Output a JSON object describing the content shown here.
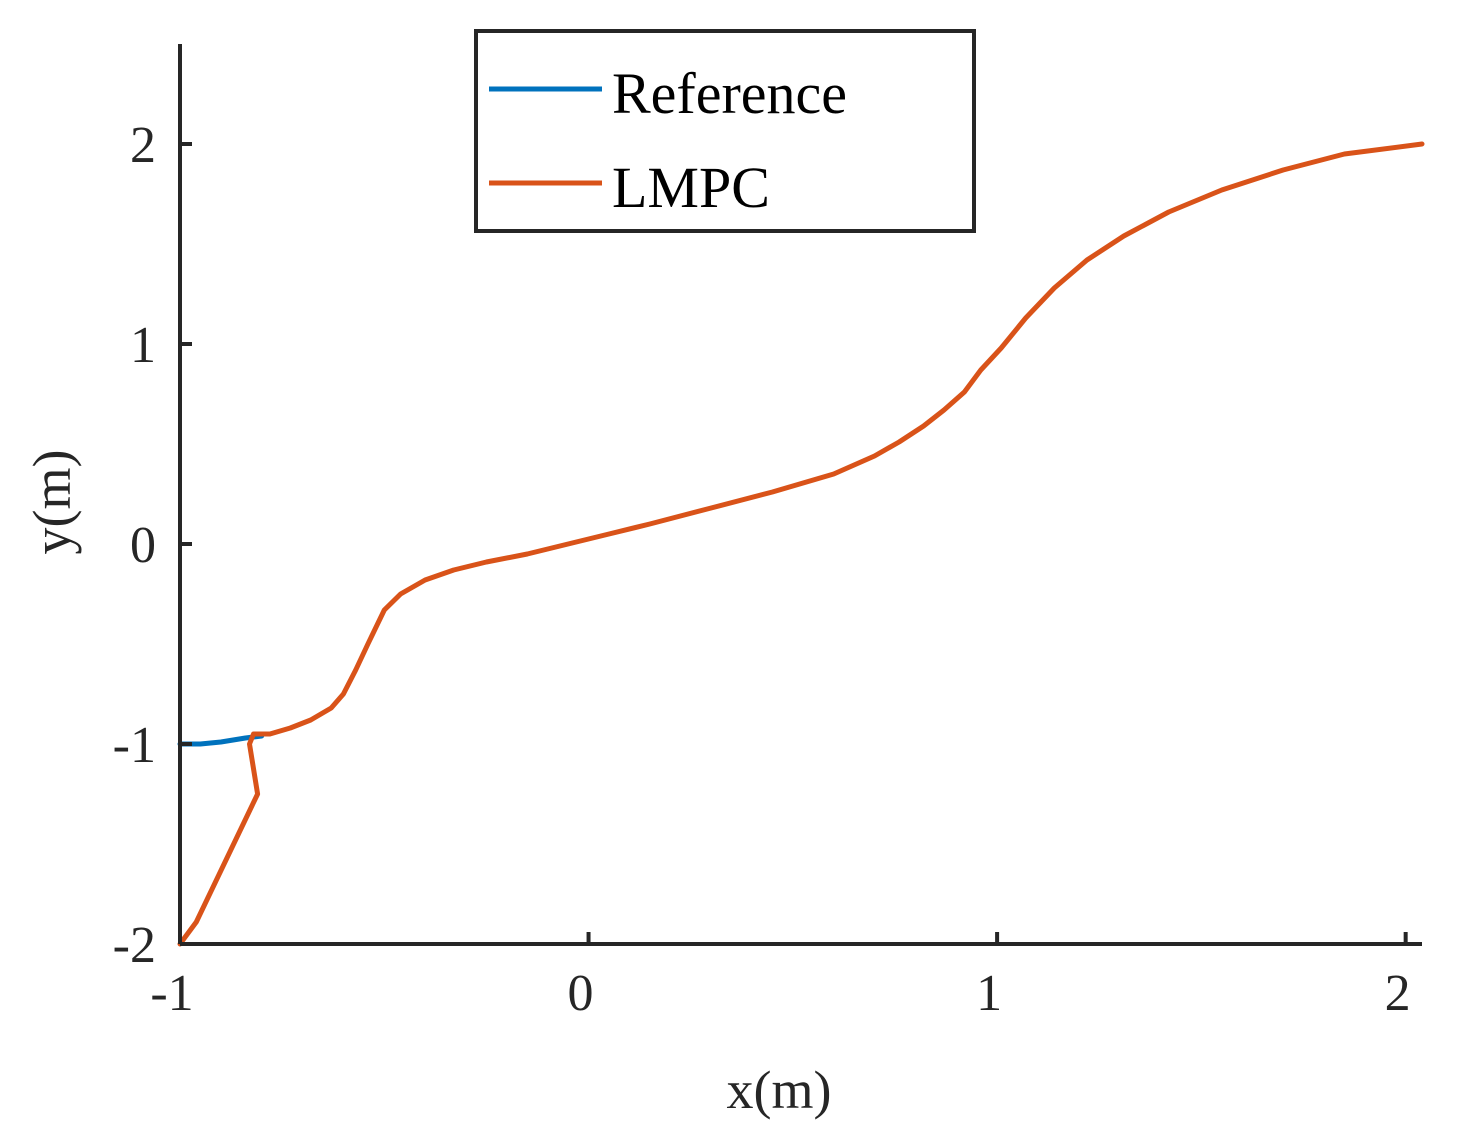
{
  "chart_data": {
    "type": "line",
    "xlabel": "x(m)",
    "ylabel": "y(m)",
    "xlim": [
      -1,
      2.04
    ],
    "ylim": [
      -2,
      2.5
    ],
    "xticks": [
      -1,
      0,
      1,
      2
    ],
    "yticks": [
      -2,
      -1,
      0,
      1,
      2
    ],
    "xtick_labels": [
      "-1",
      "0",
      "1",
      "2"
    ],
    "ytick_labels": [
      "-2",
      "-1",
      "0",
      "1",
      "2"
    ],
    "grid": false,
    "legend": "top-center",
    "series": [
      {
        "name": "Reference",
        "color": "#0072BD",
        "points": [
          [
            -1.0,
            -1.0
          ],
          [
            -0.95,
            -1.0
          ],
          [
            -0.9,
            -0.99
          ],
          [
            -0.84,
            -0.97
          ],
          [
            -0.8,
            -0.96
          ]
        ]
      },
      {
        "name": "LMPC",
        "color": "#D95319",
        "points": [
          [
            -1.0,
            -2.0
          ],
          [
            -0.96,
            -1.89
          ],
          [
            -0.81,
            -1.25
          ],
          [
            -0.83,
            -1.0
          ],
          [
            -0.82,
            -0.95
          ],
          [
            -0.78,
            -0.95
          ],
          [
            -0.73,
            -0.92
          ],
          [
            -0.68,
            -0.88
          ],
          [
            -0.63,
            -0.82
          ],
          [
            -0.6,
            -0.75
          ],
          [
            -0.57,
            -0.63
          ],
          [
            -0.54,
            -0.5
          ],
          [
            -0.5,
            -0.33
          ],
          [
            -0.46,
            -0.25
          ],
          [
            -0.4,
            -0.18
          ],
          [
            -0.33,
            -0.13
          ],
          [
            -0.25,
            -0.09
          ],
          [
            -0.15,
            -0.05
          ],
          [
            -0.05,
            0.0
          ],
          [
            0.05,
            0.05
          ],
          [
            0.15,
            0.1
          ],
          [
            0.3,
            0.18
          ],
          [
            0.45,
            0.26
          ],
          [
            0.6,
            0.35
          ],
          [
            0.7,
            0.44
          ],
          [
            0.76,
            0.51
          ],
          [
            0.82,
            0.59
          ],
          [
            0.87,
            0.67
          ],
          [
            0.92,
            0.76
          ],
          [
            0.96,
            0.87
          ],
          [
            1.01,
            0.98
          ],
          [
            1.07,
            1.13
          ],
          [
            1.14,
            1.28
          ],
          [
            1.22,
            1.42
          ],
          [
            1.31,
            1.54
          ],
          [
            1.42,
            1.66
          ],
          [
            1.55,
            1.77
          ],
          [
            1.7,
            1.87
          ],
          [
            1.85,
            1.95
          ],
          [
            2.04,
            2.0
          ]
        ]
      }
    ]
  }
}
